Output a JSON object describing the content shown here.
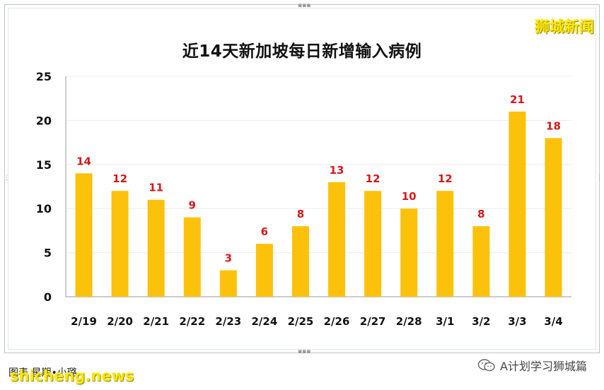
{
  "chart_data": {
    "type": "bar",
    "title": "近14天新加坡每日新增输入病例",
    "xlabel": "",
    "ylabel": "",
    "categories": [
      "2/19",
      "2/20",
      "2/21",
      "2/22",
      "2/23",
      "2/24",
      "2/25",
      "2/26",
      "2/27",
      "2/28",
      "3/1",
      "3/2",
      "3/3",
      "3/4"
    ],
    "values": [
      14,
      12,
      11,
      9,
      3,
      6,
      8,
      13,
      12,
      10,
      12,
      8,
      21,
      18
    ],
    "ylim": [
      0,
      25
    ],
    "yticks": [
      0,
      5,
      10,
      15,
      20,
      25
    ],
    "grid": true,
    "legend": "none",
    "bar_color": "#fcc10b",
    "label_color": "#d61818"
  },
  "watermark_top": "狮城新闻",
  "footer_credit": "图表    星期•小璐",
  "site_watermark": "shicheng.news",
  "account_name": "A计划学习狮城篇",
  "icons": {
    "account": "wechat-icon"
  }
}
